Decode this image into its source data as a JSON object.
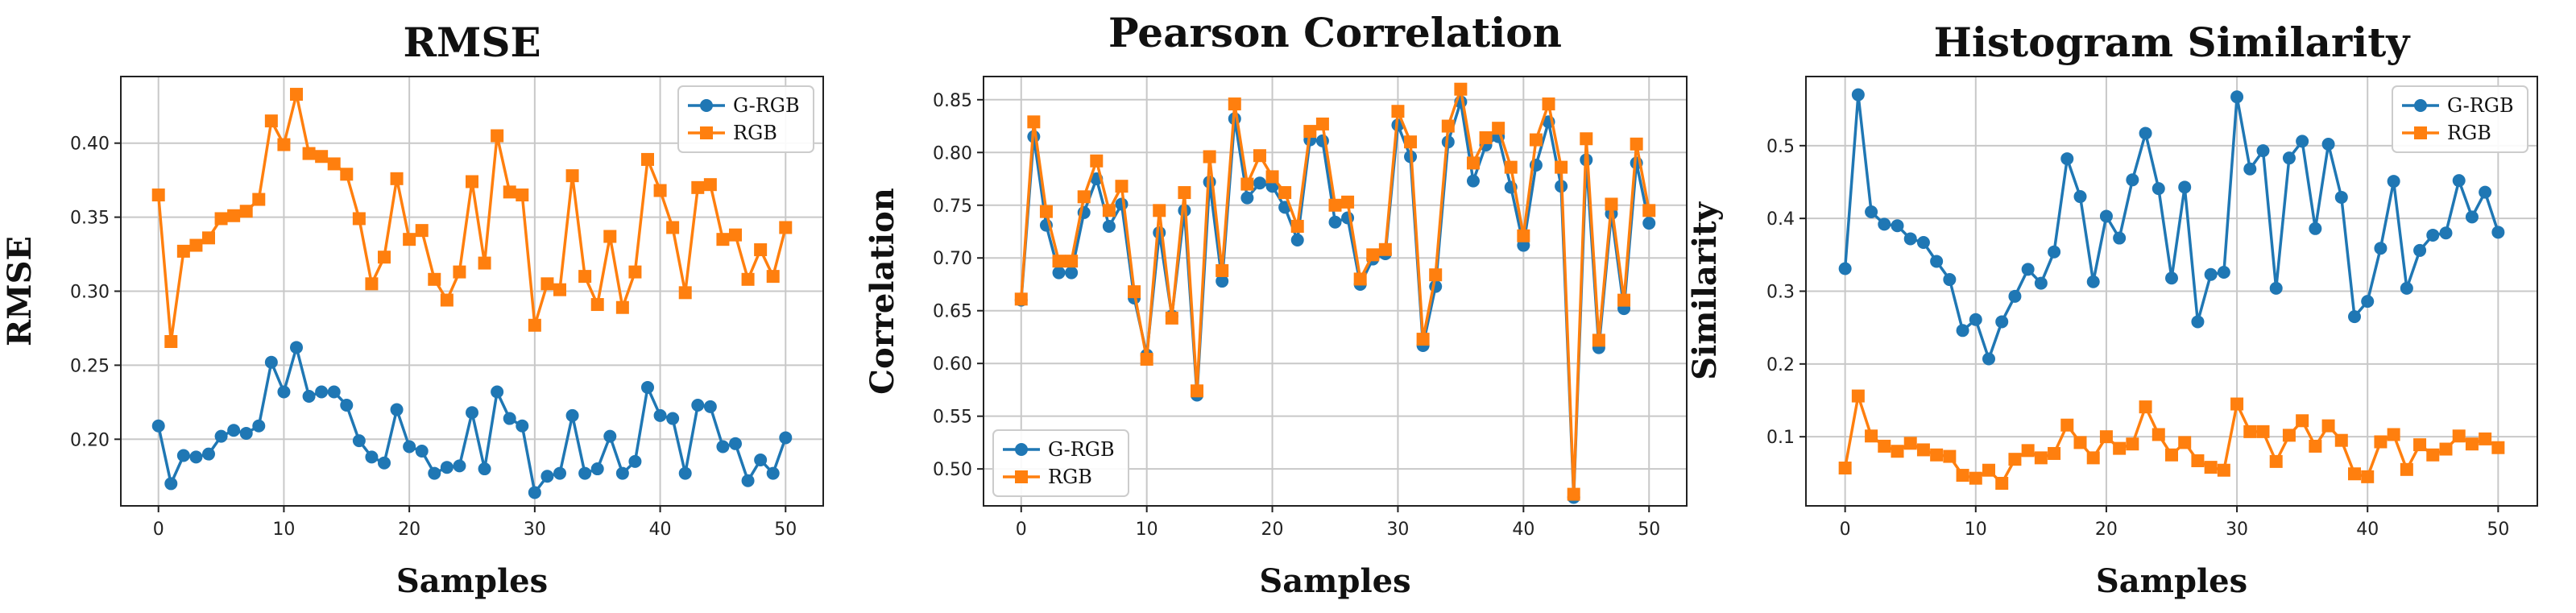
{
  "chart_data": [
    {
      "type": "line",
      "title": "RMSE",
      "xlabel": "Samples",
      "ylabel": "RMSE",
      "xlim": [
        -3,
        53
      ],
      "ylim": [
        0.155,
        0.445
      ],
      "xticks": [
        0,
        10,
        20,
        30,
        40,
        50
      ],
      "yticks": [
        0.2,
        0.25,
        0.3,
        0.35,
        0.4
      ],
      "ytick_labels": [
        "0.20",
        "0.25",
        "0.30",
        "0.35",
        "0.40"
      ],
      "grid": true,
      "legend_position": "top-right",
      "series": [
        {
          "name": "G-RGB",
          "color": "#1f77b4",
          "marker": "circle",
          "values": [
            0.209,
            0.17,
            0.189,
            0.188,
            0.19,
            0.202,
            0.206,
            0.204,
            0.209,
            0.252,
            0.232,
            0.262,
            0.229,
            0.232,
            0.232,
            0.223,
            0.199,
            0.188,
            0.184,
            0.22,
            0.195,
            0.192,
            0.177,
            0.181,
            0.182,
            0.218,
            0.18,
            0.232,
            0.214,
            0.209,
            0.164,
            0.175,
            0.177,
            0.216,
            0.177,
            0.18,
            0.202,
            0.177,
            0.185,
            0.235,
            0.216,
            0.214,
            0.177,
            0.223,
            0.222,
            0.195,
            0.197,
            0.172,
            0.186,
            0.177,
            0.201
          ]
        },
        {
          "name": "RGB",
          "color": "#ff7f0e",
          "marker": "square",
          "values": [
            0.365,
            0.266,
            0.327,
            0.331,
            0.336,
            0.349,
            0.351,
            0.354,
            0.362,
            0.415,
            0.399,
            0.433,
            0.393,
            0.391,
            0.386,
            0.379,
            0.349,
            0.305,
            0.323,
            0.376,
            0.335,
            0.341,
            0.308,
            0.294,
            0.313,
            0.374,
            0.319,
            0.405,
            0.367,
            0.365,
            0.277,
            0.305,
            0.301,
            0.378,
            0.31,
            0.291,
            0.337,
            0.289,
            0.313,
            0.389,
            0.368,
            0.343,
            0.299,
            0.37,
            0.372,
            0.335,
            0.338,
            0.308,
            0.328,
            0.31,
            0.343
          ]
        }
      ]
    },
    {
      "type": "line",
      "title": "Pearson Correlation",
      "xlabel": "Samples",
      "ylabel": "Correlation",
      "xlim": [
        -3,
        53
      ],
      "ylim": [
        0.465,
        0.872
      ],
      "xticks": [
        0,
        10,
        20,
        30,
        40,
        50
      ],
      "yticks": [
        0.5,
        0.55,
        0.6,
        0.65,
        0.7,
        0.75,
        0.8,
        0.85
      ],
      "ytick_labels": [
        "0.50",
        "0.55",
        "0.60",
        "0.65",
        "0.70",
        "0.75",
        "0.80",
        "0.85"
      ],
      "grid": true,
      "legend_position": "bottom-left",
      "series": [
        {
          "name": "G-RGB",
          "color": "#1f77b4",
          "marker": "circle",
          "values": [
            0.66,
            0.815,
            0.731,
            0.686,
            0.686,
            0.743,
            0.775,
            0.73,
            0.751,
            0.662,
            0.608,
            0.724,
            0.645,
            0.745,
            0.57,
            0.772,
            0.678,
            0.832,
            0.757,
            0.771,
            0.768,
            0.748,
            0.717,
            0.812,
            0.811,
            0.734,
            0.738,
            0.675,
            0.699,
            0.704,
            0.826,
            0.796,
            0.617,
            0.673,
            0.81,
            0.848,
            0.773,
            0.807,
            0.815,
            0.767,
            0.712,
            0.788,
            0.829,
            0.768,
            0.473,
            0.793,
            0.615,
            0.742,
            0.652,
            0.79,
            0.733
          ]
        },
        {
          "name": "RGB",
          "color": "#ff7f0e",
          "marker": "square",
          "values": [
            0.661,
            0.829,
            0.744,
            0.697,
            0.697,
            0.758,
            0.792,
            0.745,
            0.768,
            0.668,
            0.604,
            0.745,
            0.643,
            0.762,
            0.574,
            0.796,
            0.688,
            0.846,
            0.77,
            0.797,
            0.777,
            0.762,
            0.73,
            0.82,
            0.827,
            0.75,
            0.753,
            0.68,
            0.703,
            0.708,
            0.839,
            0.81,
            0.623,
            0.684,
            0.825,
            0.86,
            0.79,
            0.814,
            0.823,
            0.786,
            0.721,
            0.812,
            0.846,
            0.786,
            0.476,
            0.813,
            0.622,
            0.751,
            0.66,
            0.808,
            0.745
          ]
        }
      ]
    },
    {
      "type": "line",
      "title": "Histogram Similarity",
      "xlabel": "Samples",
      "ylabel": "Similarity",
      "xlim": [
        -3,
        53
      ],
      "ylim": [
        0.005,
        0.595
      ],
      "xticks": [
        0,
        10,
        20,
        30,
        40,
        50
      ],
      "yticks": [
        0.1,
        0.2,
        0.3,
        0.4,
        0.5
      ],
      "ytick_labels": [
        "0.1",
        "0.2",
        "0.3",
        "0.4",
        "0.5"
      ],
      "grid": true,
      "legend_position": "top-right",
      "series": [
        {
          "name": "G-RGB",
          "color": "#1f77b4",
          "marker": "circle",
          "values": [
            0.331,
            0.57,
            0.409,
            0.392,
            0.39,
            0.372,
            0.367,
            0.341,
            0.316,
            0.246,
            0.261,
            0.207,
            0.258,
            0.293,
            0.33,
            0.311,
            0.354,
            0.482,
            0.43,
            0.313,
            0.403,
            0.373,
            0.453,
            0.517,
            0.441,
            0.318,
            0.443,
            0.258,
            0.323,
            0.326,
            0.567,
            0.468,
            0.493,
            0.304,
            0.483,
            0.506,
            0.386,
            0.502,
            0.429,
            0.265,
            0.286,
            0.359,
            0.451,
            0.304,
            0.356,
            0.377,
            0.38,
            0.452,
            0.402,
            0.436,
            0.381
          ]
        },
        {
          "name": "RGB",
          "color": "#ff7f0e",
          "marker": "square",
          "values": [
            0.057,
            0.156,
            0.101,
            0.087,
            0.08,
            0.091,
            0.082,
            0.075,
            0.073,
            0.047,
            0.043,
            0.054,
            0.036,
            0.069,
            0.081,
            0.071,
            0.077,
            0.116,
            0.092,
            0.071,
            0.1,
            0.084,
            0.09,
            0.141,
            0.103,
            0.075,
            0.092,
            0.067,
            0.058,
            0.054,
            0.145,
            0.107,
            0.107,
            0.066,
            0.102,
            0.122,
            0.087,
            0.115,
            0.095,
            0.049,
            0.045,
            0.093,
            0.103,
            0.055,
            0.089,
            0.075,
            0.083,
            0.101,
            0.09,
            0.097,
            0.085
          ]
        }
      ]
    }
  ]
}
